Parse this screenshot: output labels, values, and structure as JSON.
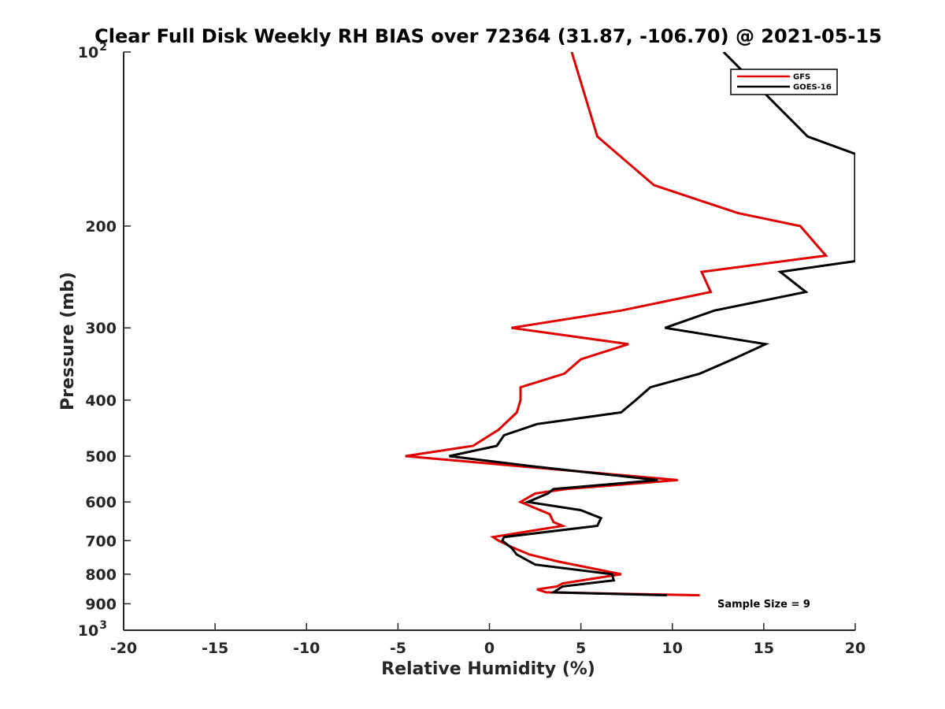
{
  "chart_data": {
    "type": "line",
    "title": "Clear Full Disk Weekly RH BIAS over 72364 (31.87, -106.70) @ 2021-05-15",
    "xlabel": "Relative Humidity (%)",
    "ylabel": "Pressure (mb)",
    "xlim": [
      -20,
      20
    ],
    "ylim": [
      100,
      1000
    ],
    "y_scale": "log",
    "y_reversed": true,
    "grid": false,
    "x_ticks": [
      "-20",
      "-15",
      "-10",
      "-5",
      "0",
      "5",
      "10",
      "15",
      "20"
    ],
    "y_ticks": [
      {
        "value": 100,
        "label": "10",
        "sup": "2"
      },
      {
        "value": 200,
        "label": "200",
        "sup": ""
      },
      {
        "value": 300,
        "label": "300",
        "sup": ""
      },
      {
        "value": 400,
        "label": "400",
        "sup": ""
      },
      {
        "value": 500,
        "label": "500",
        "sup": ""
      },
      {
        "value": 600,
        "label": "600",
        "sup": ""
      },
      {
        "value": 700,
        "label": "700",
        "sup": ""
      },
      {
        "value": 800,
        "label": "800",
        "sup": ""
      },
      {
        "value": 900,
        "label": "900",
        "sup": ""
      },
      {
        "value": 1000,
        "label": "10",
        "sup": "3"
      }
    ],
    "legend_position": "top-right",
    "annotation": "Sample Size = 9",
    "series": [
      {
        "name": "GFS",
        "color": "#e00000",
        "points": [
          [
            4.5,
            100
          ],
          [
            5.9,
            140
          ],
          [
            9.0,
            170
          ],
          [
            13.6,
            190
          ],
          [
            17.0,
            200
          ],
          [
            18.4,
            225
          ],
          [
            11.6,
            240
          ],
          [
            12.1,
            260
          ],
          [
            7.2,
            280
          ],
          [
            1.2,
            300
          ],
          [
            7.6,
            320
          ],
          [
            5.0,
            340
          ],
          [
            4.1,
            360
          ],
          [
            1.7,
            380
          ],
          [
            1.7,
            400
          ],
          [
            1.5,
            420
          ],
          [
            0.5,
            450
          ],
          [
            -0.9,
            480
          ],
          [
            -4.6,
            500
          ],
          [
            10.3,
            550
          ],
          [
            4.2,
            570
          ],
          [
            2.5,
            580
          ],
          [
            1.7,
            600
          ],
          [
            3.3,
            630
          ],
          [
            3.5,
            650
          ],
          [
            4.0,
            660
          ],
          [
            0.2,
            690
          ],
          [
            0.5,
            700
          ],
          [
            1.3,
            720
          ],
          [
            2.2,
            740
          ],
          [
            3.7,
            760
          ],
          [
            7.2,
            800
          ],
          [
            4.0,
            830
          ],
          [
            3.7,
            840
          ],
          [
            2.6,
            850
          ],
          [
            3.1,
            860
          ],
          [
            11.5,
            870
          ]
        ]
      },
      {
        "name": "GOES-16",
        "color": "#000000",
        "points": [
          [
            12.8,
            100
          ],
          [
            17.4,
            140
          ],
          [
            20.0,
            150
          ],
          [
            20.0,
            230
          ],
          [
            15.9,
            240
          ],
          [
            17.3,
            260
          ],
          [
            12.3,
            280
          ],
          [
            9.6,
            300
          ],
          [
            15.1,
            320
          ],
          [
            13.3,
            340
          ],
          [
            11.5,
            360
          ],
          [
            8.8,
            380
          ],
          [
            8.0,
            400
          ],
          [
            7.2,
            420
          ],
          [
            2.6,
            440
          ],
          [
            0.8,
            460
          ],
          [
            0.4,
            480
          ],
          [
            -2.2,
            500
          ],
          [
            2.2,
            520
          ],
          [
            9.2,
            550
          ],
          [
            3.5,
            570
          ],
          [
            3.2,
            580
          ],
          [
            2.1,
            600
          ],
          [
            5.0,
            620
          ],
          [
            6.1,
            640
          ],
          [
            5.9,
            660
          ],
          [
            0.8,
            690
          ],
          [
            0.7,
            700
          ],
          [
            1.2,
            720
          ],
          [
            1.5,
            740
          ],
          [
            2.5,
            770
          ],
          [
            6.7,
            800
          ],
          [
            6.8,
            820
          ],
          [
            4.0,
            840
          ],
          [
            3.5,
            860
          ],
          [
            9.7,
            870
          ]
        ]
      }
    ]
  },
  "colors": {
    "axis": "#262626",
    "gfs": "#e00000",
    "goes": "#000000"
  }
}
